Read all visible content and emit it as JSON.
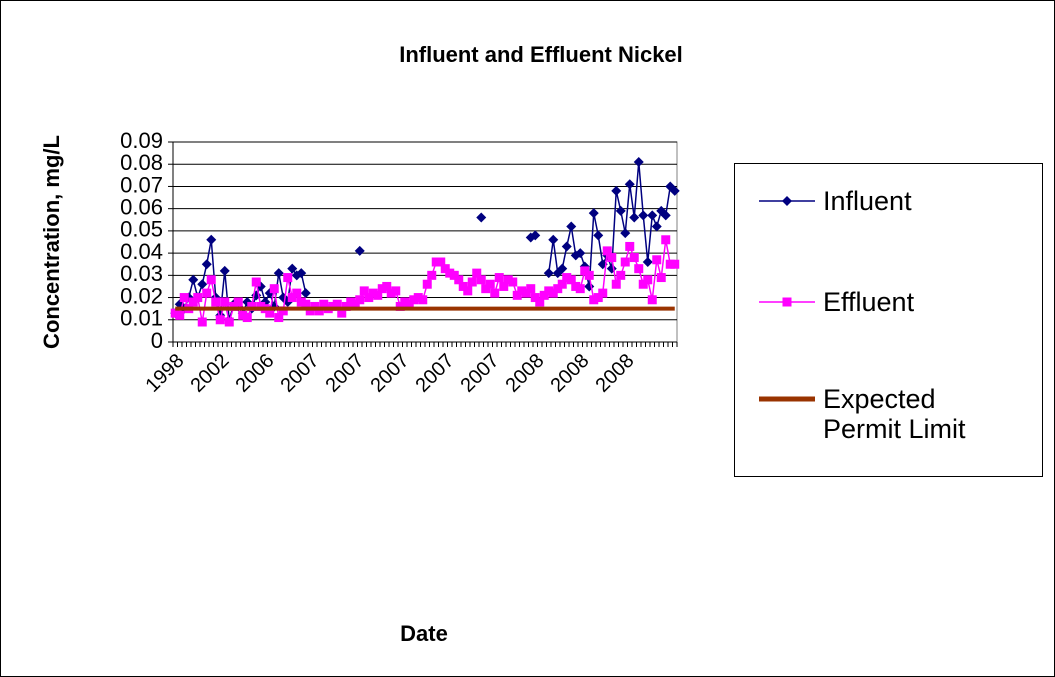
{
  "chart_data": {
    "type": "line",
    "title": "Influent and Effluent Nickel",
    "x_label": "Date",
    "y_label": "Concentration, mg/L",
    "categories": [
      "1998",
      null,
      null,
      null,
      null,
      null,
      null,
      null,
      null,
      null,
      "2002",
      null,
      null,
      null,
      null,
      null,
      null,
      null,
      null,
      null,
      "2006",
      null,
      null,
      null,
      null,
      null,
      null,
      null,
      null,
      null,
      "2007",
      null,
      null,
      null,
      null,
      null,
      null,
      null,
      null,
      null,
      "2007",
      null,
      null,
      null,
      null,
      null,
      null,
      null,
      null,
      null,
      "2007",
      null,
      null,
      null,
      null,
      null,
      null,
      null,
      null,
      null,
      "2007",
      null,
      null,
      null,
      null,
      null,
      null,
      null,
      null,
      null,
      "2007",
      null,
      null,
      null,
      null,
      null,
      null,
      null,
      null,
      null,
      "2008",
      null,
      null,
      null,
      null,
      null,
      null,
      null,
      null,
      null,
      "2008",
      null,
      null,
      null,
      null,
      null,
      null,
      null,
      null,
      null,
      "2008",
      null,
      null,
      null,
      null,
      null,
      null,
      null,
      null,
      null,
      null,
      null
    ],
    "series": [
      {
        "name": "Influent",
        "color": "#000080",
        "marker": "diamond",
        "values": [
          0.013,
          0.017,
          0.015,
          0.02,
          0.028,
          0.02,
          0.026,
          0.035,
          0.046,
          0.02,
          0.012,
          0.032,
          0.01,
          0.017,
          0.016,
          0.013,
          0.018,
          0.015,
          0.021,
          0.025,
          0.018,
          0.022,
          0.016,
          0.031,
          0.02,
          0.018,
          0.033,
          0.03,
          0.031,
          0.022,
          null,
          null,
          null,
          null,
          null,
          null,
          null,
          null,
          null,
          null,
          null,
          0.041,
          null,
          null,
          null,
          null,
          null,
          null,
          null,
          null,
          null,
          null,
          null,
          null,
          null,
          null,
          null,
          null,
          null,
          null,
          null,
          null,
          null,
          null,
          null,
          null,
          null,
          null,
          0.056,
          null,
          null,
          null,
          null,
          null,
          null,
          null,
          null,
          null,
          null,
          0.047,
          0.048,
          null,
          null,
          0.031,
          0.046,
          0.031,
          0.033,
          0.043,
          0.052,
          0.039,
          0.04,
          0.034,
          0.025,
          0.058,
          0.048,
          0.035,
          0.039,
          0.033,
          0.068,
          0.059,
          0.049,
          0.071,
          0.056,
          0.081,
          0.057,
          0.036,
          0.057,
          0.052,
          0.059,
          0.057,
          0.07,
          0.068
        ]
      },
      {
        "name": "Effluent",
        "color": "#ff00ff",
        "marker": "square",
        "values": [
          0.013,
          0.012,
          0.02,
          0.015,
          0.018,
          0.02,
          0.009,
          0.022,
          0.028,
          0.018,
          0.01,
          0.018,
          0.009,
          0.016,
          0.018,
          0.012,
          0.011,
          0.016,
          0.027,
          0.016,
          0.015,
          0.013,
          0.024,
          0.011,
          0.014,
          0.029,
          0.02,
          0.022,
          0.018,
          0.017,
          0.014,
          0.016,
          0.014,
          0.017,
          0.015,
          0.016,
          0.017,
          0.013,
          0.016,
          0.018,
          0.017,
          0.019,
          0.023,
          0.02,
          0.022,
          0.021,
          0.024,
          0.025,
          0.022,
          0.023,
          0.016,
          0.018,
          0.017,
          0.019,
          0.02,
          0.019,
          0.026,
          0.03,
          0.036,
          0.036,
          0.033,
          0.031,
          0.03,
          0.028,
          0.025,
          0.023,
          0.027,
          0.031,
          0.028,
          0.024,
          0.026,
          0.022,
          0.029,
          0.025,
          0.028,
          0.027,
          0.021,
          0.023,
          0.022,
          0.024,
          0.02,
          0.018,
          0.021,
          0.023,
          0.022,
          0.024,
          0.026,
          0.029,
          0.028,
          0.025,
          0.024,
          0.032,
          0.03,
          0.019,
          0.02,
          0.022,
          0.041,
          0.038,
          0.026,
          0.03,
          0.036,
          0.043,
          0.038,
          0.033,
          0.026,
          0.028,
          0.019,
          0.037,
          0.029,
          0.046,
          0.035,
          0.035
        ]
      },
      {
        "name": "Expected Permit Limit",
        "color": "#993300",
        "marker": "none",
        "values": [
          0.015,
          0.015,
          0.015,
          0.015,
          0.015,
          0.015,
          0.015,
          0.015,
          0.015,
          0.015,
          0.015,
          0.015,
          0.015,
          0.015,
          0.015,
          0.015,
          0.015,
          0.015,
          0.015,
          0.015,
          0.015,
          0.015,
          0.015,
          0.015,
          0.015,
          0.015,
          0.015,
          0.015,
          0.015,
          0.015,
          0.015,
          0.015,
          0.015,
          0.015,
          0.015,
          0.015,
          0.015,
          0.015,
          0.015,
          0.015,
          0.015,
          0.015,
          0.015,
          0.015,
          0.015,
          0.015,
          0.015,
          0.015,
          0.015,
          0.015,
          0.015,
          0.015,
          0.015,
          0.015,
          0.015,
          0.015,
          0.015,
          0.015,
          0.015,
          0.015,
          0.015,
          0.015,
          0.015,
          0.015,
          0.015,
          0.015,
          0.015,
          0.015,
          0.015,
          0.015,
          0.015,
          0.015,
          0.015,
          0.015,
          0.015,
          0.015,
          0.015,
          0.015,
          0.015,
          0.015,
          0.015,
          0.015,
          0.015,
          0.015,
          0.015,
          0.015,
          0.015,
          0.015,
          0.015,
          0.015,
          0.015,
          0.015,
          0.015,
          0.015,
          0.015,
          0.015,
          0.015,
          0.015,
          0.015,
          0.015,
          0.015,
          0.015,
          0.015,
          0.015,
          0.015,
          0.015,
          0.015,
          0.015,
          0.015,
          0.015,
          0.015,
          0.015
        ]
      }
    ],
    "ylim": [
      0,
      0.09
    ],
    "yticks": [
      0,
      0.01,
      0.02,
      0.03,
      0.04,
      0.05,
      0.06,
      0.07,
      0.08,
      0.09
    ],
    "grid": true,
    "legend": "right"
  }
}
